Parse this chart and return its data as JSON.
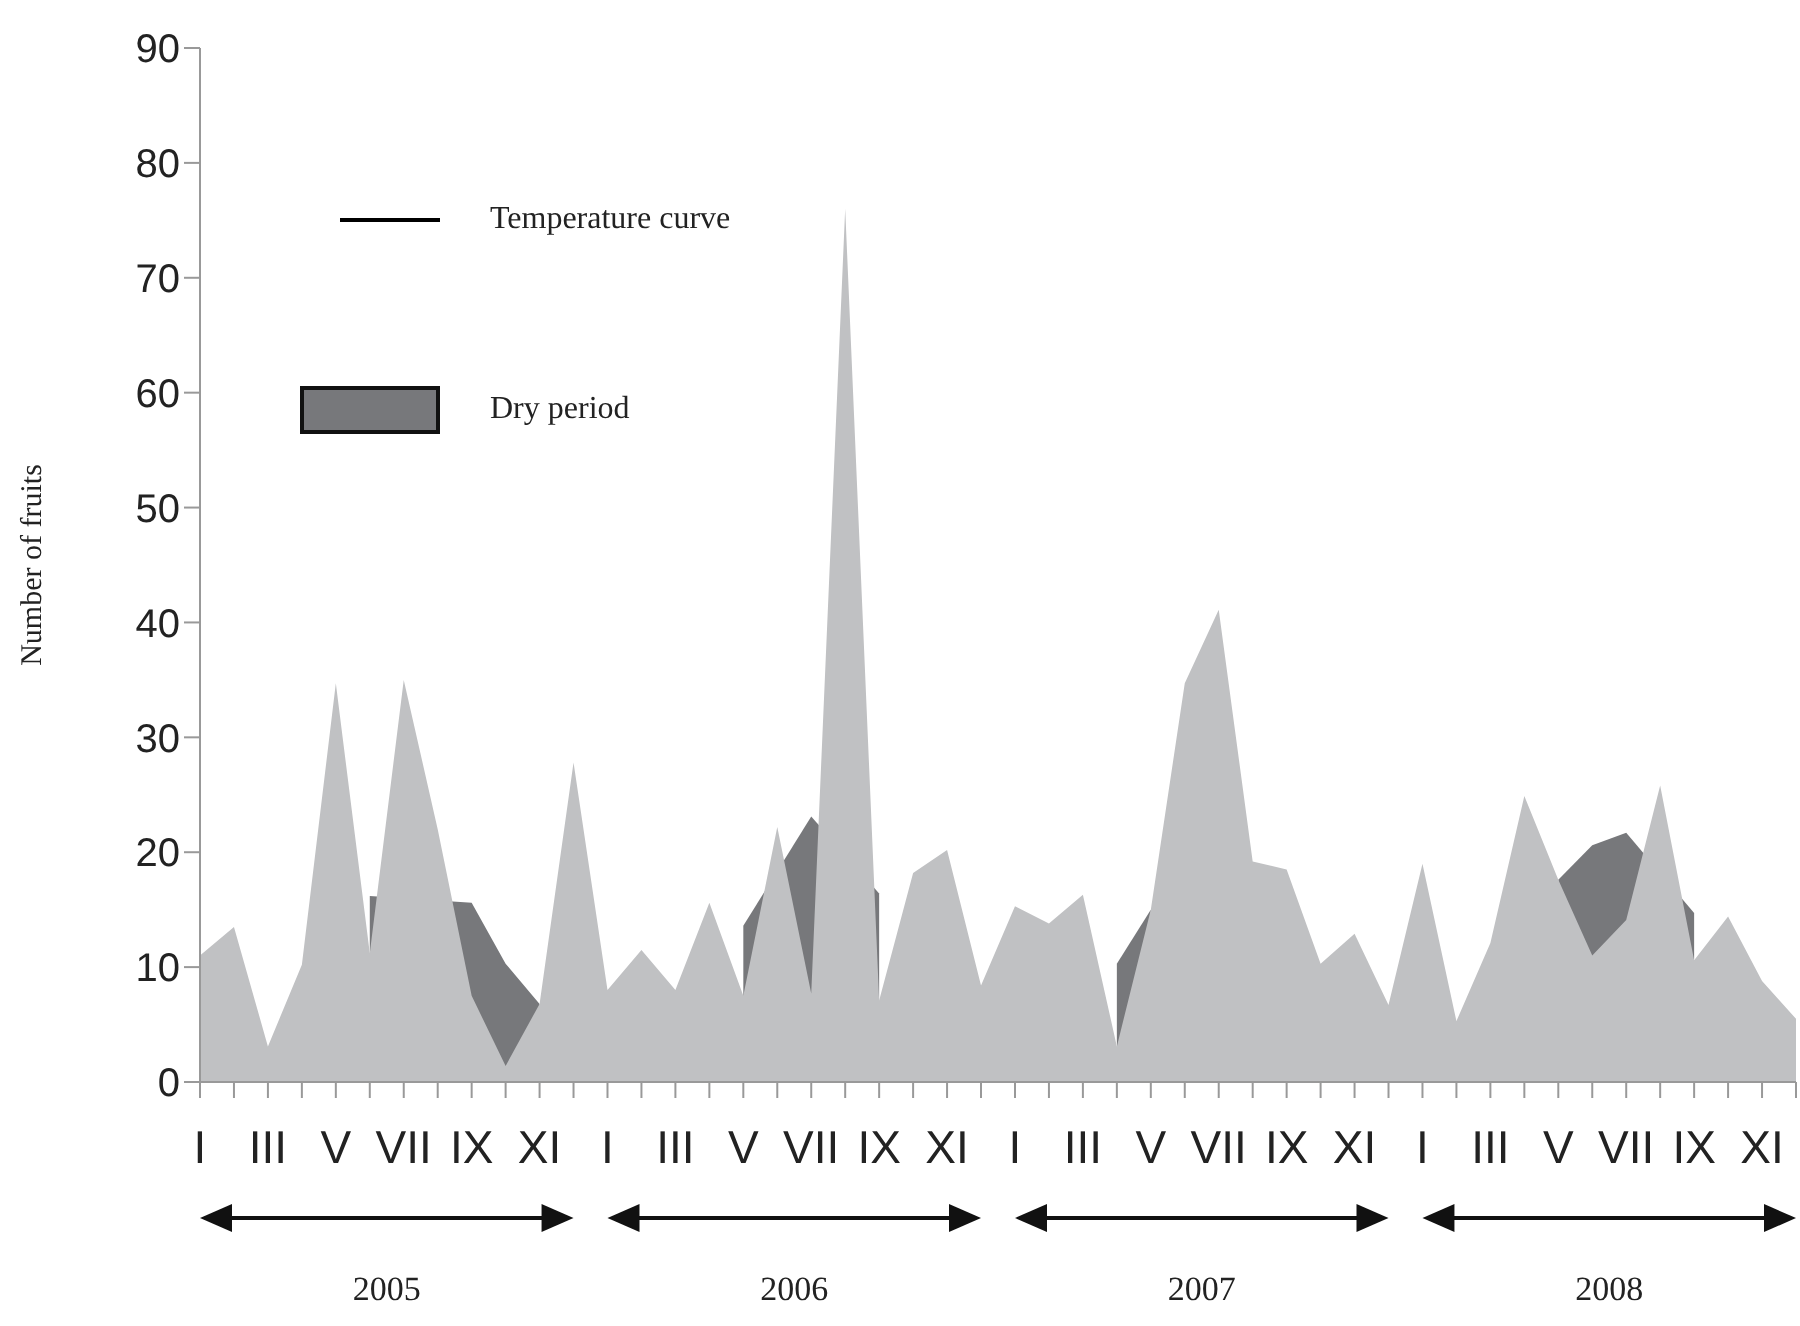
{
  "chart_data": {
    "type": "area",
    "ylabel": "Number of fruits",
    "categories": [
      "I",
      null,
      "III",
      null,
      "V",
      null,
      "VII",
      null,
      "IX",
      null,
      "XI",
      null,
      "I",
      null,
      "III",
      null,
      "V",
      null,
      "VII",
      null,
      "IX",
      null,
      "XI",
      null,
      "I",
      null,
      "III",
      null,
      "V",
      null,
      "VII",
      null,
      "IX",
      null,
      "XI",
      null,
      "I",
      null,
      "III",
      null,
      "V",
      null,
      "VII",
      null,
      "IX",
      null,
      "XI",
      null
    ],
    "series": [
      {
        "color": "#c0c1c3",
        "values": [
          11,
          13.5,
          3.1,
          10.2,
          34.7,
          11.2,
          35,
          22,
          7.5,
          1.4,
          6.8,
          27.8,
          8,
          11.5,
          8,
          15.6,
          7.5,
          22.2,
          7.7,
          76,
          7.1,
          18.2,
          20.2,
          8.4,
          15.3,
          13.8,
          16.3,
          3.1,
          15,
          34.7,
          41.1,
          19.2,
          18.5,
          10.3,
          12.9,
          6.7,
          19,
          5.3,
          12.1,
          24.9,
          17.6,
          11,
          14.1,
          25.8,
          10.6,
          14.4,
          8.8,
          5.5
        ]
      },
      {
        "name": "Dry period",
        "color": "#77787b",
        "values": [
          null,
          null,
          null,
          null,
          null,
          16.2,
          null,
          null,
          15.6,
          10.3,
          6.8,
          null,
          null,
          null,
          null,
          null,
          null,
          null,
          null,
          null,
          null,
          null,
          null,
          null,
          null,
          null,
          null,
          null,
          null,
          null,
          null,
          null,
          null,
          null,
          null,
          null,
          null,
          null,
          null,
          null,
          null,
          null,
          null,
          null,
          null,
          null,
          null,
          null
        ]
      },
      {
        "color": "#77787b",
        "values": [
          null,
          null,
          null,
          null,
          null,
          null,
          null,
          null,
          null,
          null,
          null,
          null,
          null,
          null,
          null,
          null,
          13.6,
          null,
          23.1,
          null,
          16.4,
          null,
          null,
          null,
          null,
          null,
          null,
          null,
          null,
          null,
          null,
          null,
          null,
          null,
          null,
          null,
          null,
          null,
          null,
          null,
          null,
          null,
          null,
          null,
          null,
          null,
          null,
          null
        ]
      },
      {
        "color": "#77787b",
        "values": [
          null,
          null,
          null,
          null,
          null,
          null,
          null,
          null,
          null,
          null,
          null,
          null,
          null,
          null,
          null,
          null,
          null,
          null,
          null,
          null,
          null,
          null,
          null,
          null,
          null,
          null,
          null,
          10.3,
          15,
          null,
          null,
          null,
          null,
          null,
          null,
          null,
          null,
          null,
          null,
          null,
          null,
          null,
          null,
          null,
          null,
          null,
          null,
          null
        ]
      },
      {
        "color": "#77787b",
        "values": [
          null,
          null,
          null,
          null,
          null,
          null,
          null,
          null,
          null,
          null,
          null,
          null,
          null,
          null,
          null,
          null,
          null,
          null,
          null,
          null,
          null,
          null,
          null,
          null,
          null,
          null,
          null,
          null,
          null,
          null,
          null,
          null,
          null,
          null,
          null,
          null,
          null,
          null,
          null,
          null,
          17.6,
          20.6,
          21.7,
          null,
          14.7,
          null,
          null,
          null
        ]
      },
      {
        "name": "Temperature curve",
        "type": "line",
        "color": "#000000",
        "values": [
          null,
          null,
          null,
          null,
          null,
          null,
          null,
          null,
          null,
          null,
          null,
          null,
          null,
          null,
          null,
          null,
          null,
          null,
          null,
          null,
          null,
          null,
          null,
          null,
          null,
          null,
          null,
          null,
          null,
          null,
          null,
          null,
          null,
          null,
          null,
          null,
          null,
          null,
          null,
          null,
          null,
          null,
          null,
          null,
          null,
          null,
          null,
          null
        ]
      }
    ],
    "ylim": [
      0,
      90
    ],
    "yticks": [
      0,
      10,
      20,
      30,
      40,
      50,
      60,
      70,
      80,
      90
    ],
    "legend": "top left",
    "annotations": [
      "2005",
      "2006",
      "2007",
      "2008"
    ]
  }
}
